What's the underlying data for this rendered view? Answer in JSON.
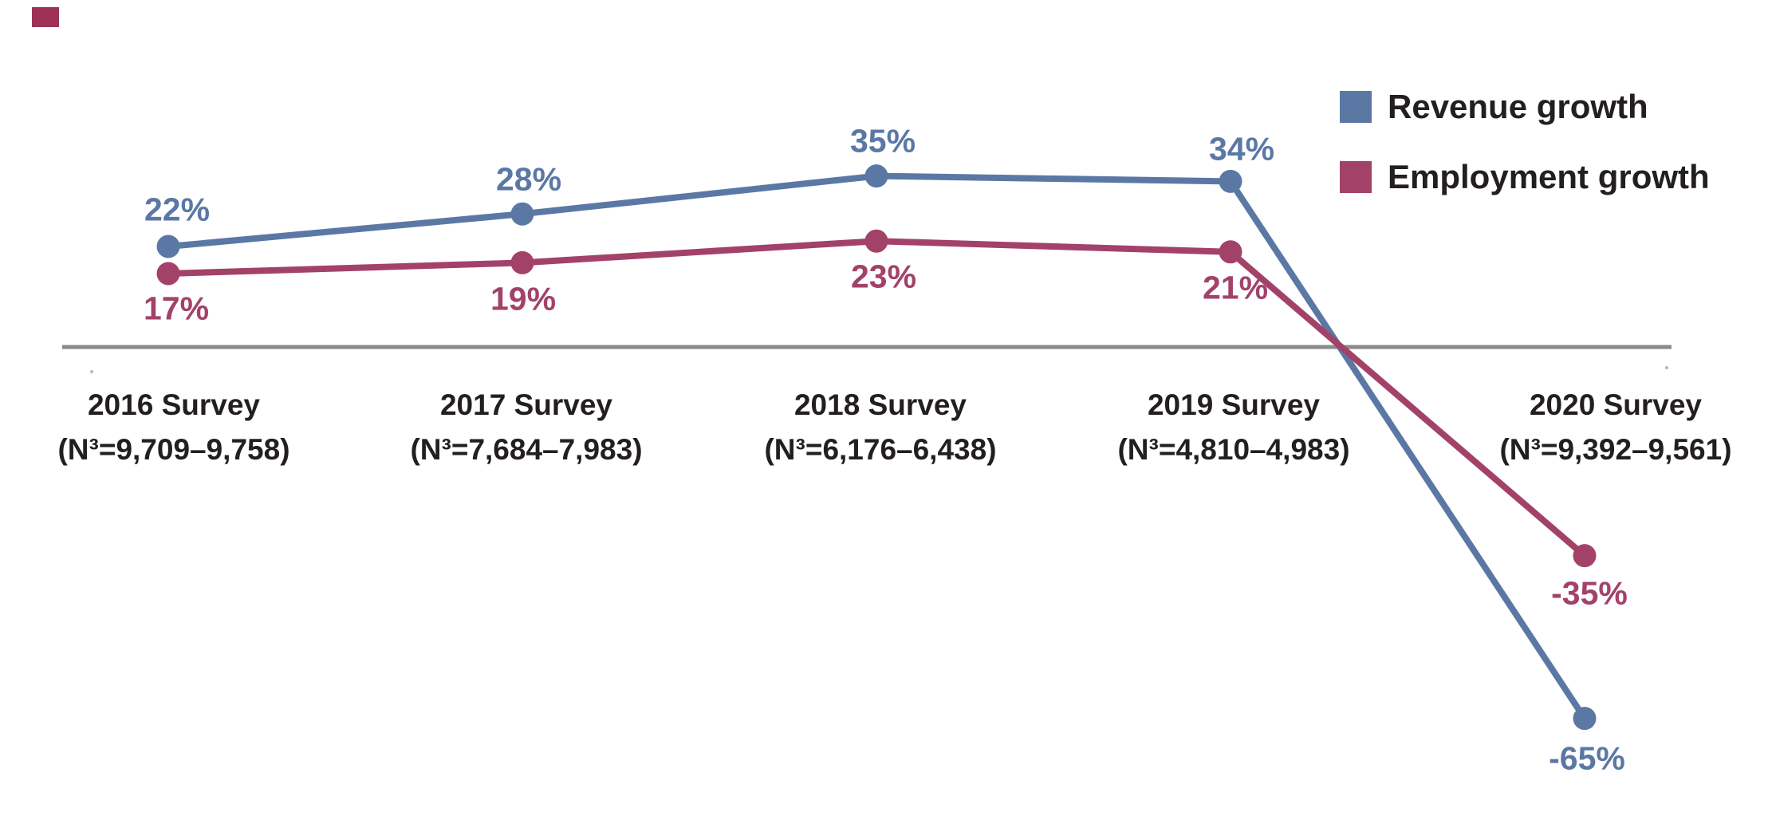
{
  "chart_data": {
    "type": "line",
    "title": "",
    "xlabel": "",
    "ylabel": "",
    "grid": false,
    "baseline_value": 0,
    "legend_position": "top-right",
    "axis_color": "#8a8a8d",
    "categories": [
      {
        "line1": "2016 Survey",
        "line2": "(N³=9,709–9,758)"
      },
      {
        "line1": "2017 Survey",
        "line2": "(N³=7,684–7,983)"
      },
      {
        "line1": "2018 Survey",
        "line2": "(N³=6,176–6,438)"
      },
      {
        "line1": "2019 Survey",
        "line2": "(N³=4,810–4,983)"
      },
      {
        "line1": "2020 Survey",
        "line2": "(N³=9,392–9,561)"
      }
    ],
    "series": [
      {
        "name": "Revenue growth",
        "color": "#5b78a5",
        "values": [
          22,
          28,
          35,
          34,
          -65
        ],
        "point_labels": [
          "22%",
          "28%",
          "35%",
          "34%",
          "-65%"
        ]
      },
      {
        "name": "Employment growth",
        "color": "#a34269",
        "values": [
          17,
          19,
          23,
          21,
          -35
        ],
        "point_labels": [
          "17%",
          "19%",
          "23%",
          "21%",
          "-35%"
        ]
      }
    ]
  },
  "decor": {
    "corner_mark_color": "#9d3158"
  }
}
